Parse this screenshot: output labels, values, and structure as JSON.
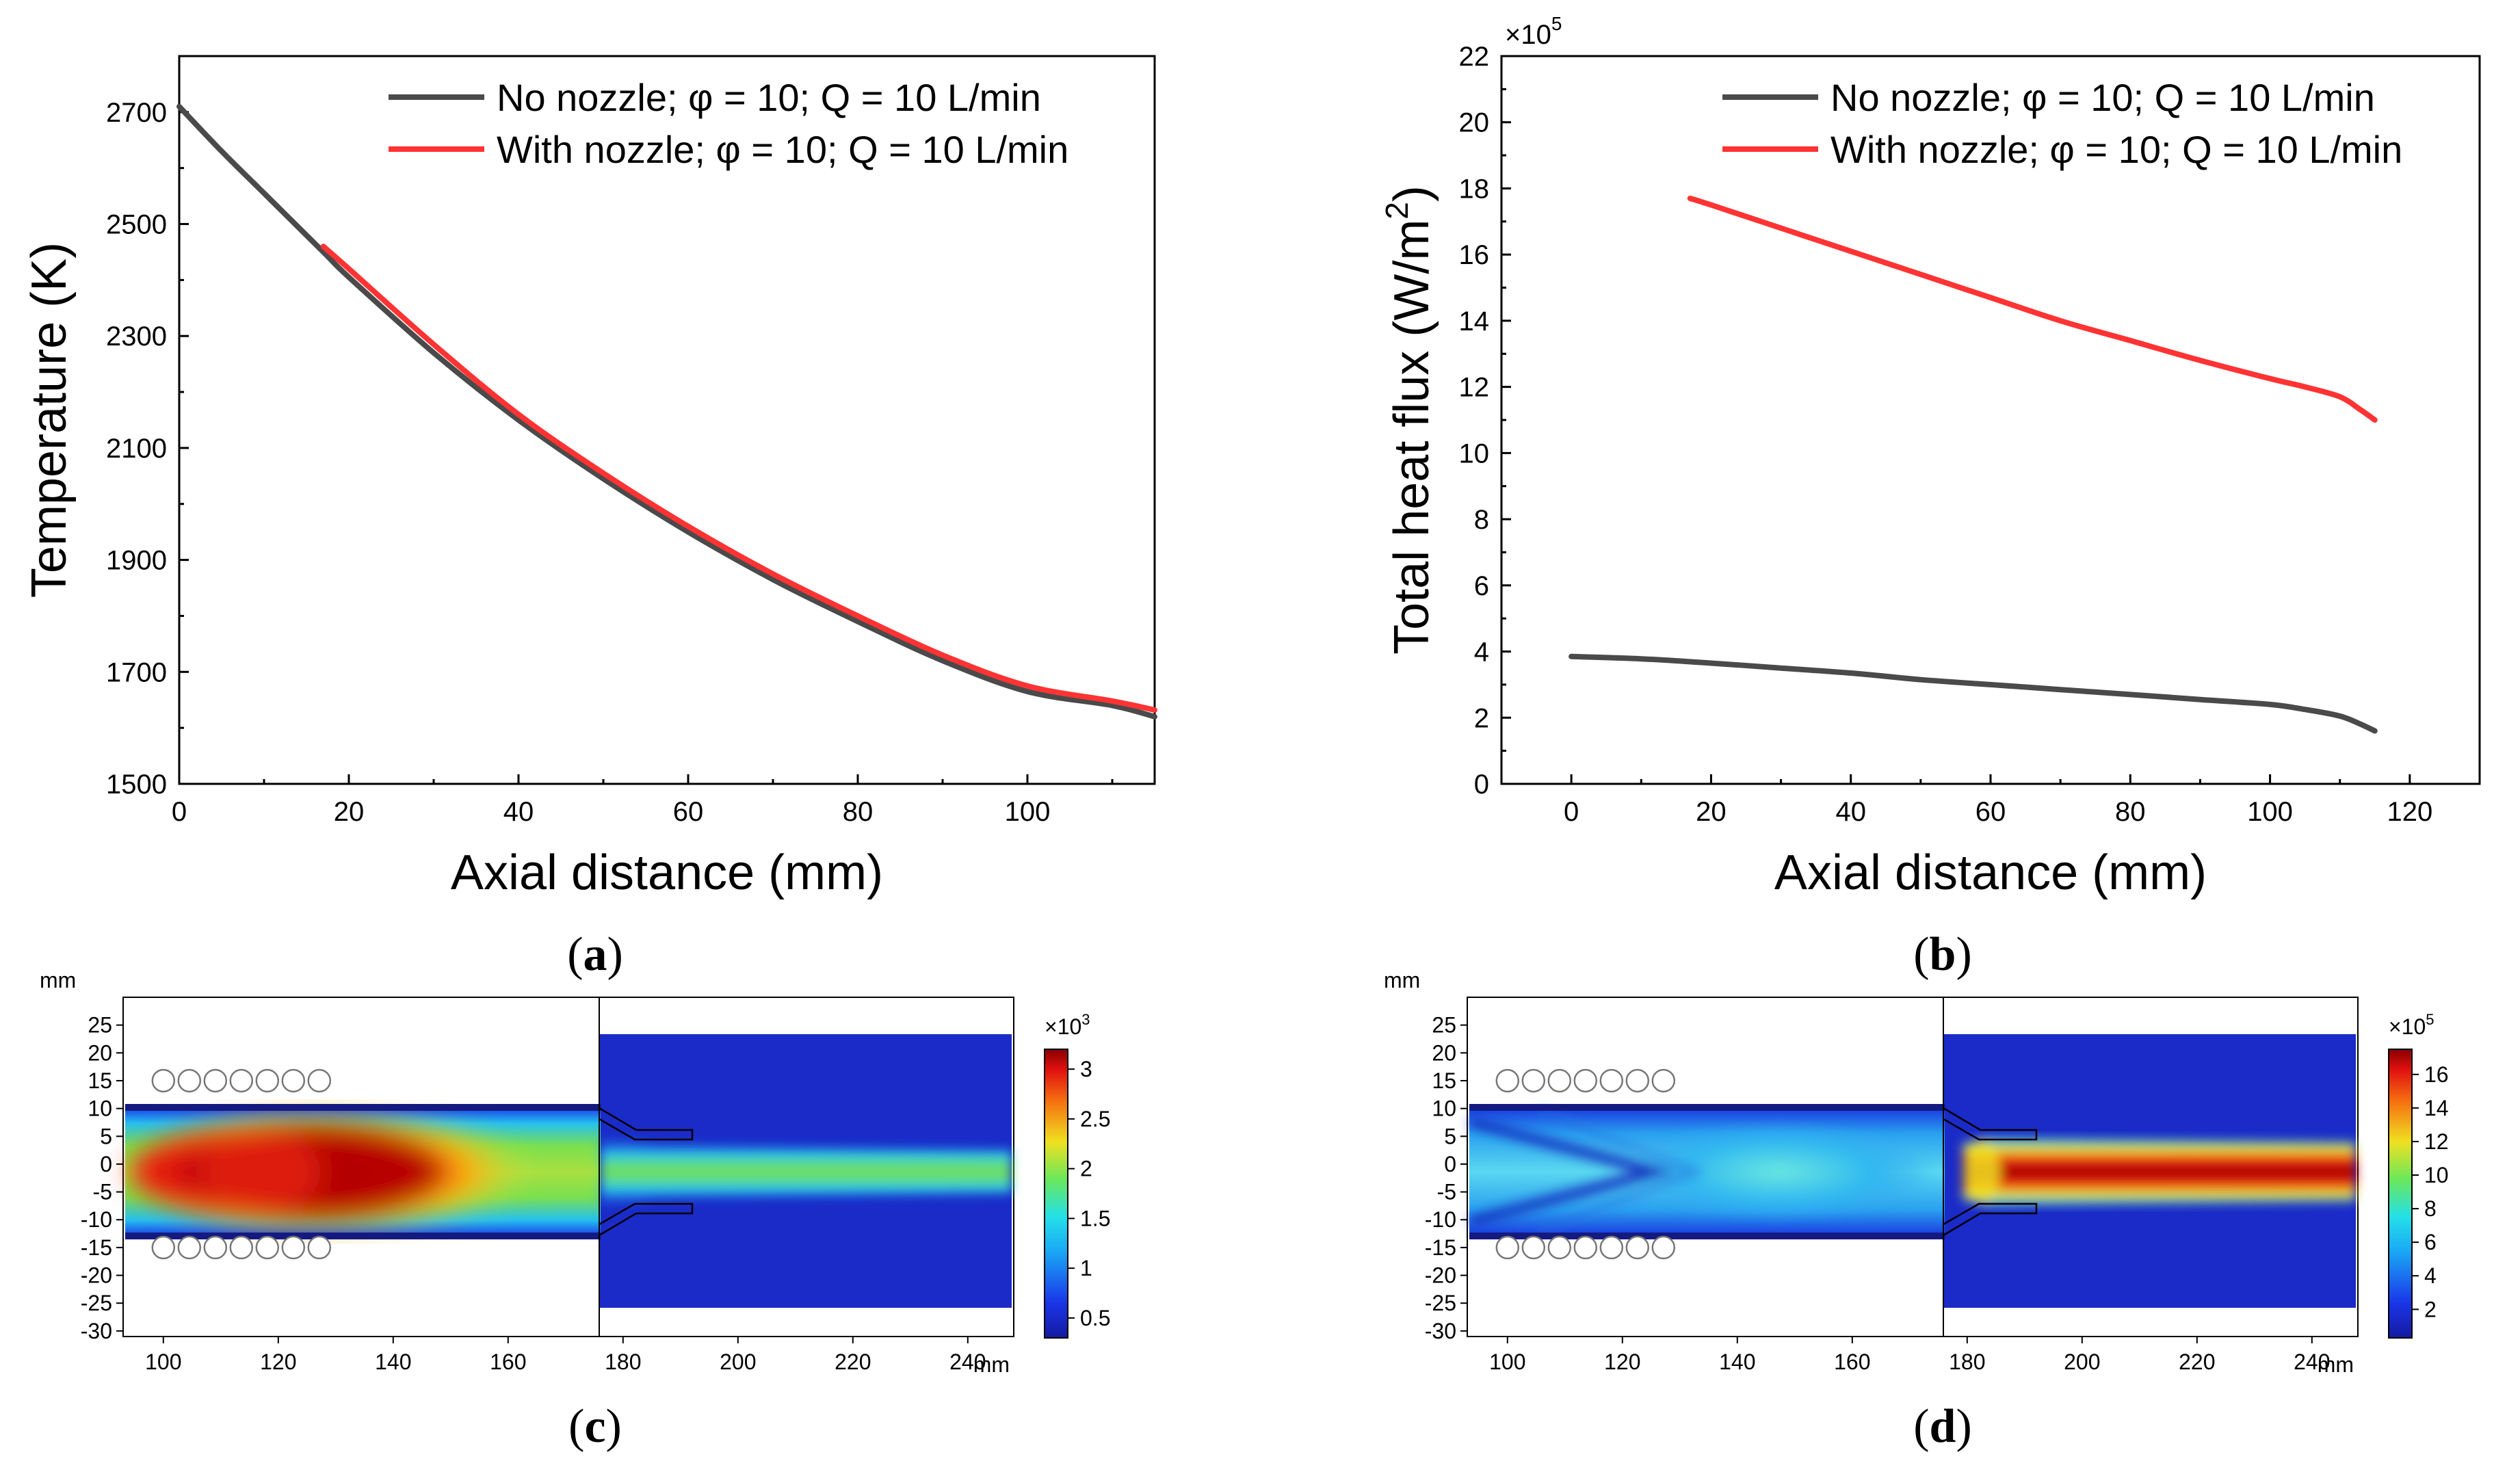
{
  "chart_data": [
    {
      "panel": "a",
      "type": "line",
      "xlabel": "Axial distance (mm)",
      "ylabel": "Temperature (K)",
      "xlim": [
        0,
        115
      ],
      "ylim": [
        1500,
        2800
      ],
      "xticks": [
        0,
        20,
        40,
        60,
        80,
        100
      ],
      "yticks": [
        1500,
        1700,
        1900,
        2100,
        2300,
        2500,
        2700
      ],
      "legend_position": "top-right",
      "series": [
        {
          "name": "No nozzle; φ = 10; Q = 10 L/min",
          "color": "#4a4a4a",
          "x": [
            0,
            5,
            10,
            17,
            20,
            30,
            40,
            50,
            60,
            70,
            80,
            90,
            100,
            110,
            115
          ],
          "y": [
            2710,
            2630,
            2555,
            2450,
            2405,
            2270,
            2150,
            2045,
            1950,
            1865,
            1790,
            1720,
            1665,
            1640,
            1620
          ]
        },
        {
          "name": "With nozzle; φ = 10; Q = 10 L/min",
          "color": "#ff3333",
          "x": [
            17,
            20,
            30,
            40,
            50,
            60,
            70,
            80,
            90,
            100,
            110,
            115
          ],
          "y": [
            2460,
            2420,
            2285,
            2160,
            2055,
            1960,
            1875,
            1800,
            1730,
            1675,
            1648,
            1632
          ]
        }
      ]
    },
    {
      "panel": "b",
      "type": "line",
      "xlabel": "Axial distance (mm)",
      "ylabel_main": "Total heat flux (W/m",
      "ylabel_sup": "2",
      "ylabel_end": ")",
      "y_multiplier_base": "×10",
      "y_multiplier_exp": "5",
      "xlim": [
        -10,
        130
      ],
      "ylim": [
        0,
        22
      ],
      "xticks": [
        0,
        20,
        40,
        60,
        80,
        100,
        120
      ],
      "yticks": [
        0,
        2,
        4,
        6,
        8,
        10,
        12,
        14,
        16,
        18,
        20,
        22
      ],
      "legend_position": "top-right",
      "series": [
        {
          "name": "No nozzle; φ = 10; Q = 10 L/min",
          "color": "#4a4a4a",
          "x": [
            0,
            10,
            20,
            30,
            40,
            50,
            60,
            70,
            80,
            90,
            100,
            105,
            110,
            113,
            115
          ],
          "y": [
            3.85,
            3.78,
            3.65,
            3.5,
            3.35,
            3.15,
            3.0,
            2.85,
            2.7,
            2.55,
            2.4,
            2.25,
            2.05,
            1.8,
            1.6
          ]
        },
        {
          "name": "With nozzle; φ = 10; Q = 10 L/min",
          "color": "#ff3333",
          "x": [
            17,
            20,
            30,
            40,
            50,
            60,
            70,
            80,
            90,
            100,
            105,
            110,
            113,
            115
          ],
          "y": [
            17.7,
            17.5,
            16.8,
            16.1,
            15.4,
            14.7,
            14.0,
            13.4,
            12.8,
            12.25,
            12.0,
            11.7,
            11.3,
            11.0
          ]
        }
      ]
    },
    {
      "panel": "c",
      "type": "heatmap",
      "unit": "mm",
      "xticks": [
        100,
        120,
        140,
        160,
        180,
        200,
        220,
        240
      ],
      "yticks": [
        25,
        20,
        15,
        10,
        5,
        0,
        -5,
        -10,
        -15,
        -20,
        -25,
        -30
      ],
      "xlim": [
        93,
        248
      ],
      "ylim": [
        -31,
        30
      ],
      "colorbar_multiplier_base": "×10",
      "colorbar_multiplier_exp": "3",
      "colorbar_ticks": [
        "3",
        "2.5",
        "2",
        "1.5",
        "1",
        "0.5"
      ],
      "colorbar_range": [
        0.3,
        3.2
      ]
    },
    {
      "panel": "d",
      "type": "heatmap",
      "unit": "mm",
      "xticks": [
        100,
        120,
        140,
        160,
        180,
        200,
        220,
        240
      ],
      "yticks": [
        25,
        20,
        15,
        10,
        5,
        0,
        -5,
        -10,
        -15,
        -20,
        -25,
        -30
      ],
      "xlim": [
        93,
        248
      ],
      "ylim": [
        -31,
        30
      ],
      "colorbar_multiplier_base": "×10",
      "colorbar_multiplier_exp": "5",
      "colorbar_ticks": [
        "16",
        "14",
        "12",
        "10",
        "8",
        "6",
        "4",
        "2"
      ],
      "colorbar_range": [
        0.3,
        17.5
      ]
    }
  ],
  "panel_labels": {
    "a_open": "(",
    "a": "a",
    "a_close": ")",
    "b_open": "(",
    "b": "b",
    "b_close": ")",
    "c_open": "(",
    "c": "c",
    "c_close": ")",
    "d_open": "(",
    "d": "d",
    "d_close": ")"
  },
  "colors": {
    "heat_low": "#1a2bc8",
    "heat_cyan": "#25d6f0",
    "heat_green": "#4ce06a",
    "heat_yellow": "#f5d820",
    "heat_red": "#e81810",
    "heat_dark": "#7a0000"
  }
}
